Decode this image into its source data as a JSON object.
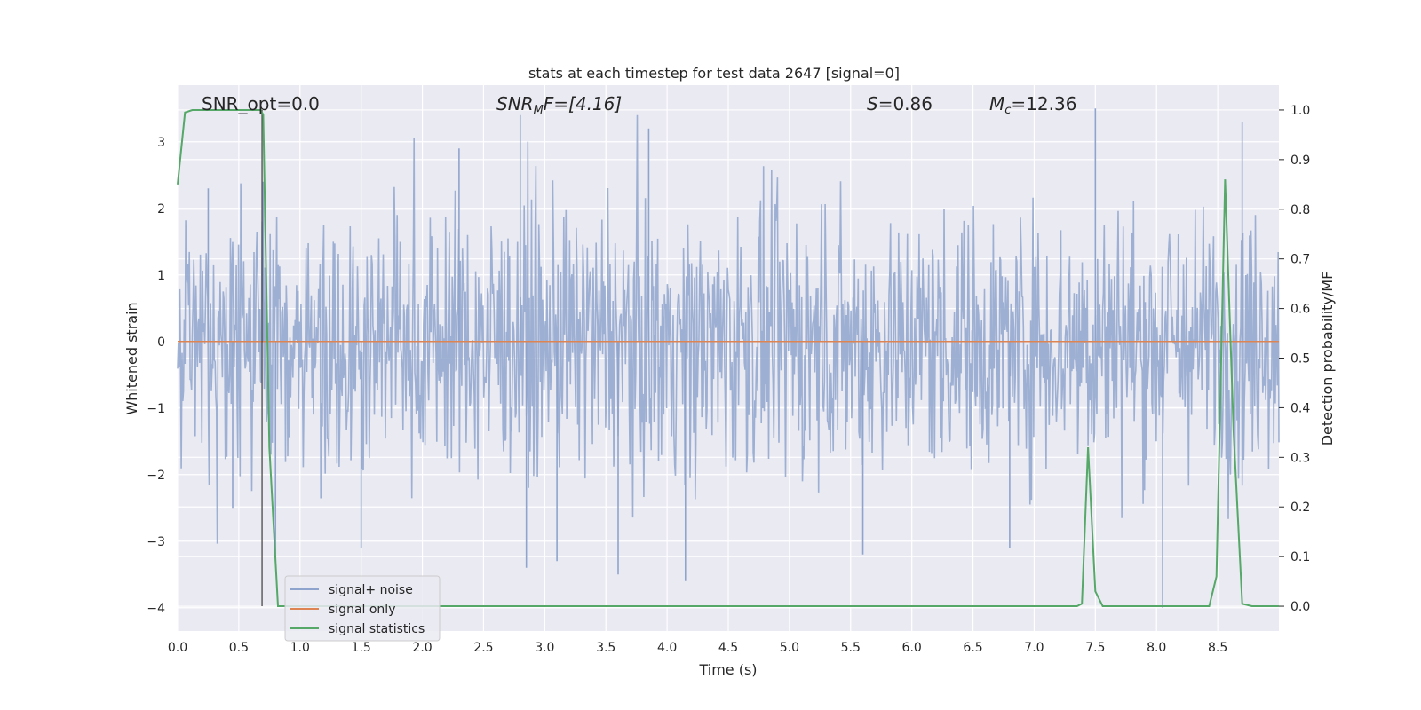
{
  "chart_data": {
    "type": "line",
    "title": "stats at each timestep for test data 2647 [signal=0]",
    "xlabel": "Time (s)",
    "ylabel": "Whitened strain",
    "ylabel_right": "Detection probability/MF",
    "xlim": [
      0,
      9
    ],
    "ylim": [
      -4.35,
      3.85
    ],
    "ylim_right": [
      -0.05,
      1.05
    ],
    "x_ticks": [
      "0.0",
      "0.5",
      "1.0",
      "1.5",
      "2.0",
      "2.5",
      "3.0",
      "3.5",
      "4.0",
      "4.5",
      "5.0",
      "5.5",
      "6.0",
      "6.5",
      "7.0",
      "7.5",
      "8.0",
      "8.5"
    ],
    "y_ticks": [
      "3",
      "2",
      "1",
      "0",
      "−1",
      "−2",
      "−3",
      "−4"
    ],
    "y_ticks_right": [
      "1.0",
      "0.9",
      "0.8",
      "0.7",
      "0.6",
      "0.5",
      "0.4",
      "0.3",
      "0.2",
      "0.1",
      "0.0"
    ],
    "grid": true,
    "legend_position": "lower-left",
    "annotations": {
      "snr_opt": "SNR_opt=0.0",
      "snr_mf_base": "SNR",
      "snr_mf_sub": "M",
      "snr_mf_rest": "F=[4.16]",
      "s_base": "S",
      "s_rest": "=0.86",
      "mc_base": "M",
      "mc_sub": "c",
      "mc_rest": "=12.36"
    },
    "marker_line_x": 0.69,
    "series": [
      {
        "name": "signal+ noise",
        "color": "#8fa4cc",
        "description_values": "whitened noise, roughly within -2.5..2.5 with peaks to +3.5 / -4.0",
        "peaks": [
          [
            0.25,
            2.3
          ],
          [
            0.45,
            -2.5
          ],
          [
            0.7,
            2.4
          ],
          [
            0.8,
            -3.3
          ],
          [
            1.5,
            -3.1
          ],
          [
            2.3,
            2.9
          ],
          [
            2.8,
            3.4
          ],
          [
            2.85,
            -3.4
          ],
          [
            3.1,
            -3.3
          ],
          [
            3.6,
            -3.5
          ],
          [
            3.85,
            3.2
          ],
          [
            4.15,
            -3.6
          ],
          [
            5.6,
            -3.2
          ],
          [
            6.8,
            -3.1
          ],
          [
            7.5,
            3.5
          ],
          [
            8.05,
            -4.0
          ],
          [
            8.7,
            3.3
          ]
        ]
      },
      {
        "name": "signal only",
        "color": "#dd8452",
        "constant_value": 0
      },
      {
        "name": "signal statistics",
        "color": "#55a868",
        "x": [
          0.0,
          0.06,
          0.12,
          0.5,
          0.68,
          0.7,
          0.75,
          0.82,
          7.35,
          7.39,
          7.44,
          7.5,
          7.56,
          8.43,
          8.49,
          8.56,
          8.63,
          8.7,
          8.78,
          9.0
        ],
        "y": [
          0.85,
          0.995,
          1.0,
          1.0,
          1.0,
          0.99,
          0.32,
          0.0,
          0.0,
          0.005,
          0.32,
          0.03,
          0.0,
          0.0,
          0.06,
          0.86,
          0.35,
          0.005,
          0.0,
          0.0
        ]
      }
    ]
  }
}
